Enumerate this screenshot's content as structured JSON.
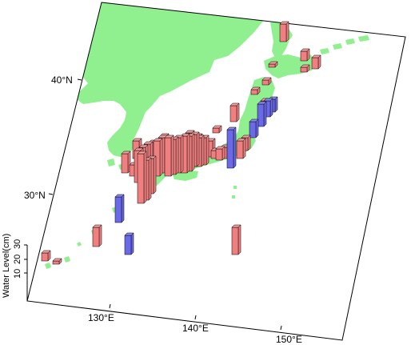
{
  "map": {
    "land_color": "#90f090",
    "frame_color": "#000000",
    "latitude_labels": [
      "40°N",
      "30°N"
    ],
    "longitude_labels": [
      "130°E",
      "140°E",
      "150°E"
    ]
  },
  "legend": {
    "axis_title": "Water Level(cm)",
    "ticks": [
      "30",
      "20",
      "10"
    ]
  },
  "series_colors": {
    "rise": "#f08080",
    "rise_top": "#f4a0a0",
    "fall": "#6a6ae8",
    "fall_top": "#8a8af0"
  },
  "bars_summary": {
    "units": "cm",
    "note_positive_color": "rise",
    "note_negative_color": "fall"
  }
}
